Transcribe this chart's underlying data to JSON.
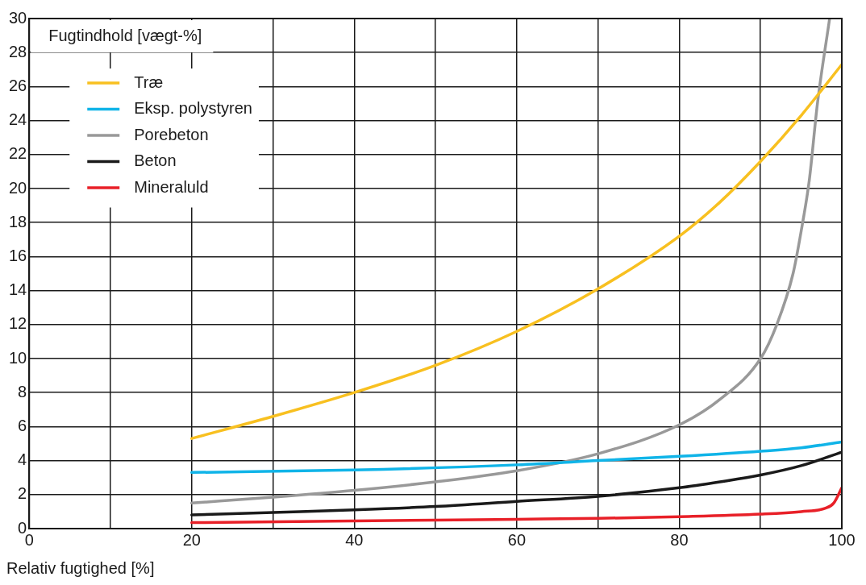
{
  "chart_data": {
    "type": "line",
    "xlabel": "Relativ fugtighed [%]",
    "ylabel": "Fugtindhold [vægt-%]",
    "xlim": [
      0,
      100
    ],
    "xticks": [
      0,
      {
        "value": 10,
        "label": null
      },
      20,
      {
        "value": 30,
        "label": null
      },
      40,
      {
        "value": 50,
        "label": null
      },
      60,
      {
        "value": 70,
        "label": null
      },
      80,
      {
        "value": 90,
        "label": null
      },
      100
    ],
    "ylim": [
      0,
      30
    ],
    "yticks": [
      0,
      2,
      4,
      6,
      8,
      10,
      12,
      14,
      16,
      18,
      20,
      22,
      24,
      26,
      28,
      30
    ],
    "grid": true,
    "legend": "top left",
    "marker": "none",
    "line_style": "solid",
    "series": [
      {
        "name": "Træ",
        "color": "#f8c020",
        "x": [
          20,
          30,
          40,
          50,
          60,
          70,
          80,
          85,
          90,
          95,
          100
        ],
        "values": [
          5.3,
          6.6,
          8.0,
          9.6,
          11.6,
          14.1,
          17.2,
          19.2,
          21.6,
          24.3,
          27.3
        ]
      },
      {
        "name": "Eksp. polystyren",
        "color": "#10b4e8",
        "x": [
          20,
          40,
          60,
          70,
          80,
          90,
          95,
          100
        ],
        "values": [
          3.3,
          3.45,
          3.75,
          4.0,
          4.25,
          4.55,
          4.75,
          5.1
        ]
      },
      {
        "name": "Porebeton",
        "color": "#999999",
        "x": [
          20,
          30,
          40,
          50,
          60,
          70,
          80,
          85,
          90,
          92,
          94,
          95,
          96,
          97,
          98.5
        ],
        "values": [
          1.5,
          1.85,
          2.25,
          2.75,
          3.4,
          4.4,
          6.1,
          7.6,
          10.0,
          12,
          15,
          17.5,
          20.5,
          25,
          30
        ]
      },
      {
        "name": "Beton",
        "color": "#1a1a1a",
        "x": [
          20,
          30,
          40,
          50,
          60,
          70,
          80,
          85,
          90,
          95,
          100
        ],
        "values": [
          0.8,
          0.95,
          1.1,
          1.3,
          1.6,
          1.9,
          2.4,
          2.75,
          3.15,
          3.7,
          4.5
        ]
      },
      {
        "name": "Mineraluld",
        "color": "#e82028",
        "x": [
          20,
          40,
          60,
          70,
          80,
          90,
          95,
          98,
          99,
          100
        ],
        "values": [
          0.35,
          0.45,
          0.55,
          0.6,
          0.7,
          0.85,
          1.0,
          1.2,
          1.5,
          2.4
        ]
      }
    ]
  }
}
